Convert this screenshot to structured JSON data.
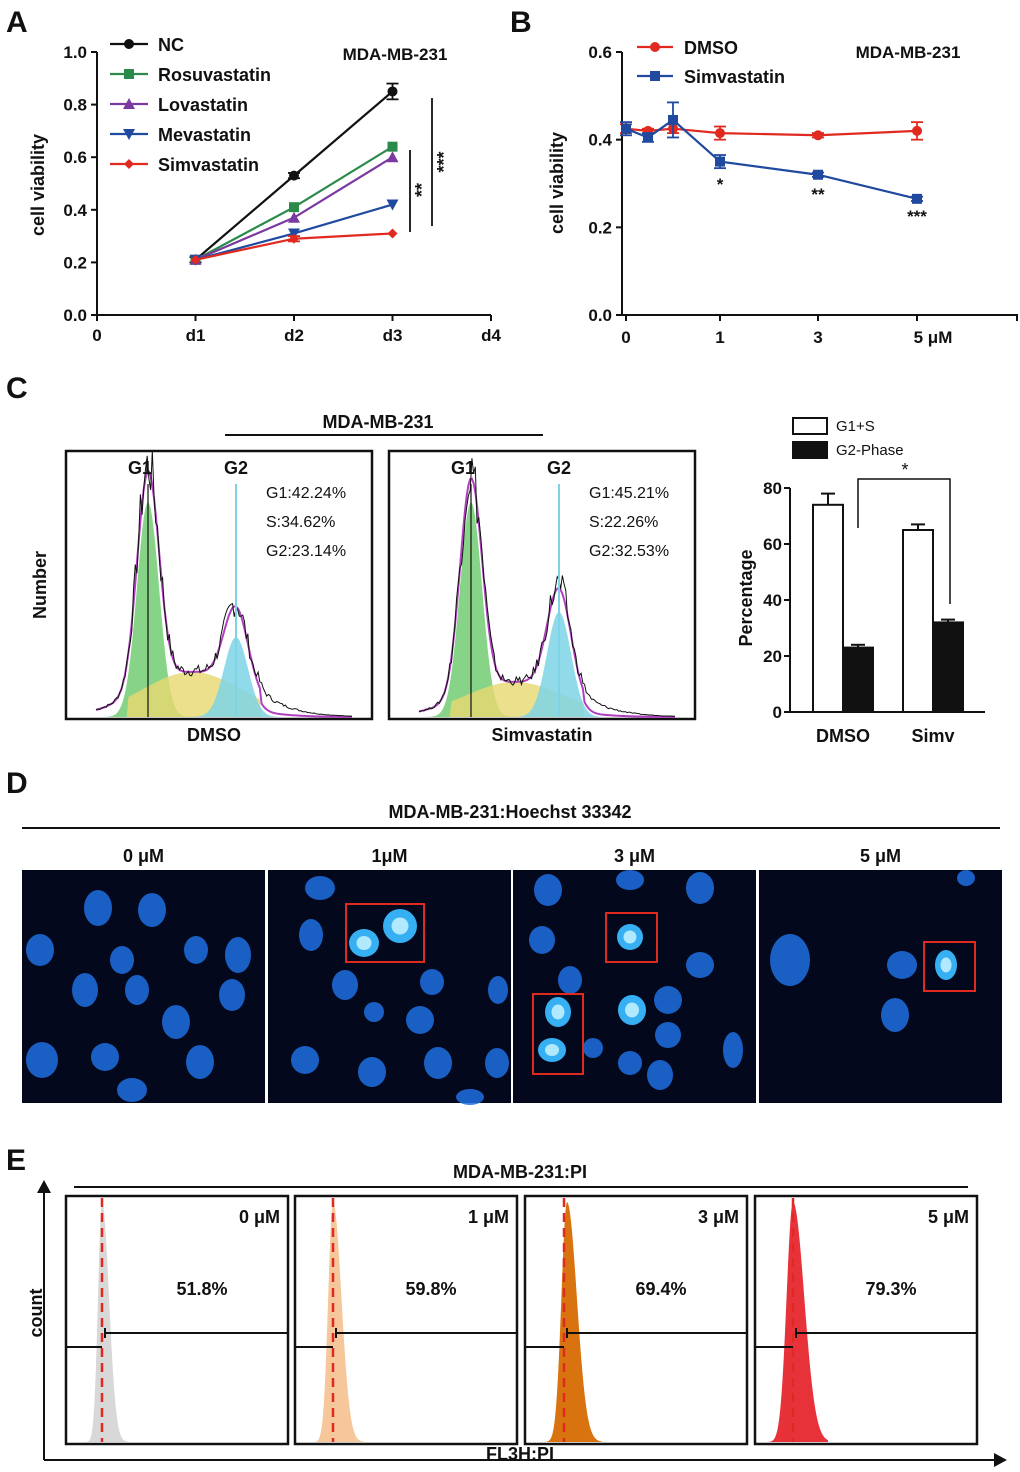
{
  "colors": {
    "nc": "#111111",
    "rosuvastatin": "#2a8a4a",
    "lovastatin": "#7a3aa0",
    "mevastatin": "#1f4aa0",
    "simvastatin": "#e02a20",
    "dmso_line": "#e02a20",
    "simv_line": "#1f4aa0",
    "pi0": "#d8d8d8",
    "pi1": "#f6c79a",
    "pi3": "#d9730f",
    "pi5": "#e8323a",
    "micro_bg": "#04081c",
    "nucleus": "#1f6fe0",
    "box": "#e02a20"
  },
  "chart_data": [
    {
      "panel": "A",
      "type": "line",
      "title": "MDA-MB-231",
      "xlabel": "",
      "ylabel": "cell viability",
      "categories": [
        "0",
        "d1",
        "d2",
        "d3",
        "d4"
      ],
      "x": [
        1,
        2,
        3
      ],
      "ylim": [
        0.0,
        1.0
      ],
      "yticks": [
        "0.0",
        "0.2",
        "0.4",
        "0.6",
        "0.8",
        "1.0"
      ],
      "series": [
        {
          "name": "NC",
          "values": [
            0.21,
            0.53,
            0.85
          ],
          "err": [
            0.01,
            0.01,
            0.03
          ],
          "marker": "circle",
          "color_key": "nc"
        },
        {
          "name": "Rosuvastatin",
          "values": [
            0.21,
            0.41,
            0.64
          ],
          "err": [
            0.0,
            0.0,
            0.0
          ],
          "marker": "square",
          "color_key": "rosuvastatin"
        },
        {
          "name": "Lovastatin",
          "values": [
            0.21,
            0.37,
            0.6
          ],
          "err": [
            0.0,
            0.0,
            0.0
          ],
          "marker": "triangle",
          "color_key": "lovastatin"
        },
        {
          "name": "Mevastatin",
          "values": [
            0.21,
            0.31,
            0.42
          ],
          "err": [
            0.0,
            0.0,
            0.0
          ],
          "marker": "triangle-down",
          "color_key": "mevastatin"
        },
        {
          "name": "Simvastatin",
          "values": [
            0.21,
            0.29,
            0.31
          ],
          "err": [
            0.0,
            0.01,
            0.0
          ],
          "marker": "diamond",
          "color_key": "simvastatin"
        }
      ],
      "significance": [
        {
          "label": "**"
        },
        {
          "label": "***"
        }
      ]
    },
    {
      "panel": "B",
      "type": "line",
      "title": "MDA-MB-231",
      "xlabel": "",
      "ylabel": "cell viability",
      "xticks": [
        "0",
        "1",
        "3",
        "5 μM"
      ],
      "ylim": [
        0.0,
        0.6
      ],
      "yticks": [
        "0.0",
        "0.2",
        "0.4",
        "0.6"
      ],
      "series": [
        {
          "name": "DMSO",
          "x": [
            0,
            0.25,
            0.5,
            1,
            3,
            5
          ],
          "values": [
            0.425,
            0.42,
            0.425,
            0.415,
            0.41,
            0.42
          ],
          "err": [
            0.01,
            0.005,
            0.01,
            0.015,
            0.005,
            0.02
          ],
          "marker": "circle",
          "color_key": "dmso_line"
        },
        {
          "name": "Simvastatin",
          "x": [
            0,
            0.25,
            0.5,
            1,
            3,
            5
          ],
          "values": [
            0.425,
            0.405,
            0.445,
            0.35,
            0.32,
            0.265
          ],
          "err": [
            0.015,
            0.01,
            0.04,
            0.015,
            0.005,
            0.005
          ],
          "marker": "square",
          "color_key": "simv_line"
        }
      ],
      "significance": [
        "*",
        "**",
        "***"
      ]
    },
    {
      "panel": "C",
      "type": "histogram",
      "title": "MDA-MB-231",
      "ylabel": "Number",
      "samples": [
        {
          "name": "DMSO",
          "peaks": [
            "G1",
            "G2"
          ],
          "stats": [
            "G1:42.24%",
            "S:34.62%",
            "G2:23.14%"
          ],
          "g1": 42.24,
          "s": 34.62,
          "g2": 23.14
        },
        {
          "name": "Simvastatin",
          "peaks": [
            "G1",
            "G2"
          ],
          "stats": [
            "G1:45.21%",
            "S:22.26%",
            "G2:32.53%"
          ],
          "g1": 45.21,
          "s": 22.26,
          "g2": 32.53
        }
      ]
    },
    {
      "panel": "C",
      "type": "bar",
      "ylabel": "Percentage",
      "categories": [
        "DMSO",
        "Simv"
      ],
      "ylim": [
        0,
        80
      ],
      "yticks": [
        "0",
        "20",
        "40",
        "60",
        "80"
      ],
      "series": [
        {
          "name": "G1+S",
          "values": [
            74,
            65
          ],
          "err": [
            4,
            2
          ]
        },
        {
          "name": "G2-Phase",
          "values": [
            23,
            32
          ],
          "err": [
            1,
            1
          ]
        }
      ],
      "significance": "*"
    },
    {
      "panel": "E",
      "type": "histogram",
      "title": "MDA-MB-231:PI",
      "xlabel": "FL3H:PI",
      "ylabel": "count",
      "samples": [
        {
          "dose": "0 μM",
          "percent": "51.8%",
          "color_key": "pi0"
        },
        {
          "dose": "1 μM",
          "percent": "59.8%",
          "color_key": "pi1"
        },
        {
          "dose": "3 μM",
          "percent": "69.4%",
          "color_key": "pi3"
        },
        {
          "dose": "5 μM",
          "percent": "79.3%",
          "color_key": "pi5"
        }
      ]
    }
  ],
  "panel_labels": {
    "a": "A",
    "b": "B",
    "c": "C",
    "d": "D",
    "e": "E"
  },
  "microscopy": {
    "title": "MDA-MB-231:Hoechst 33342",
    "doses": [
      "0 μM",
      "1μM",
      "3 μM",
      "5 μM"
    ]
  }
}
